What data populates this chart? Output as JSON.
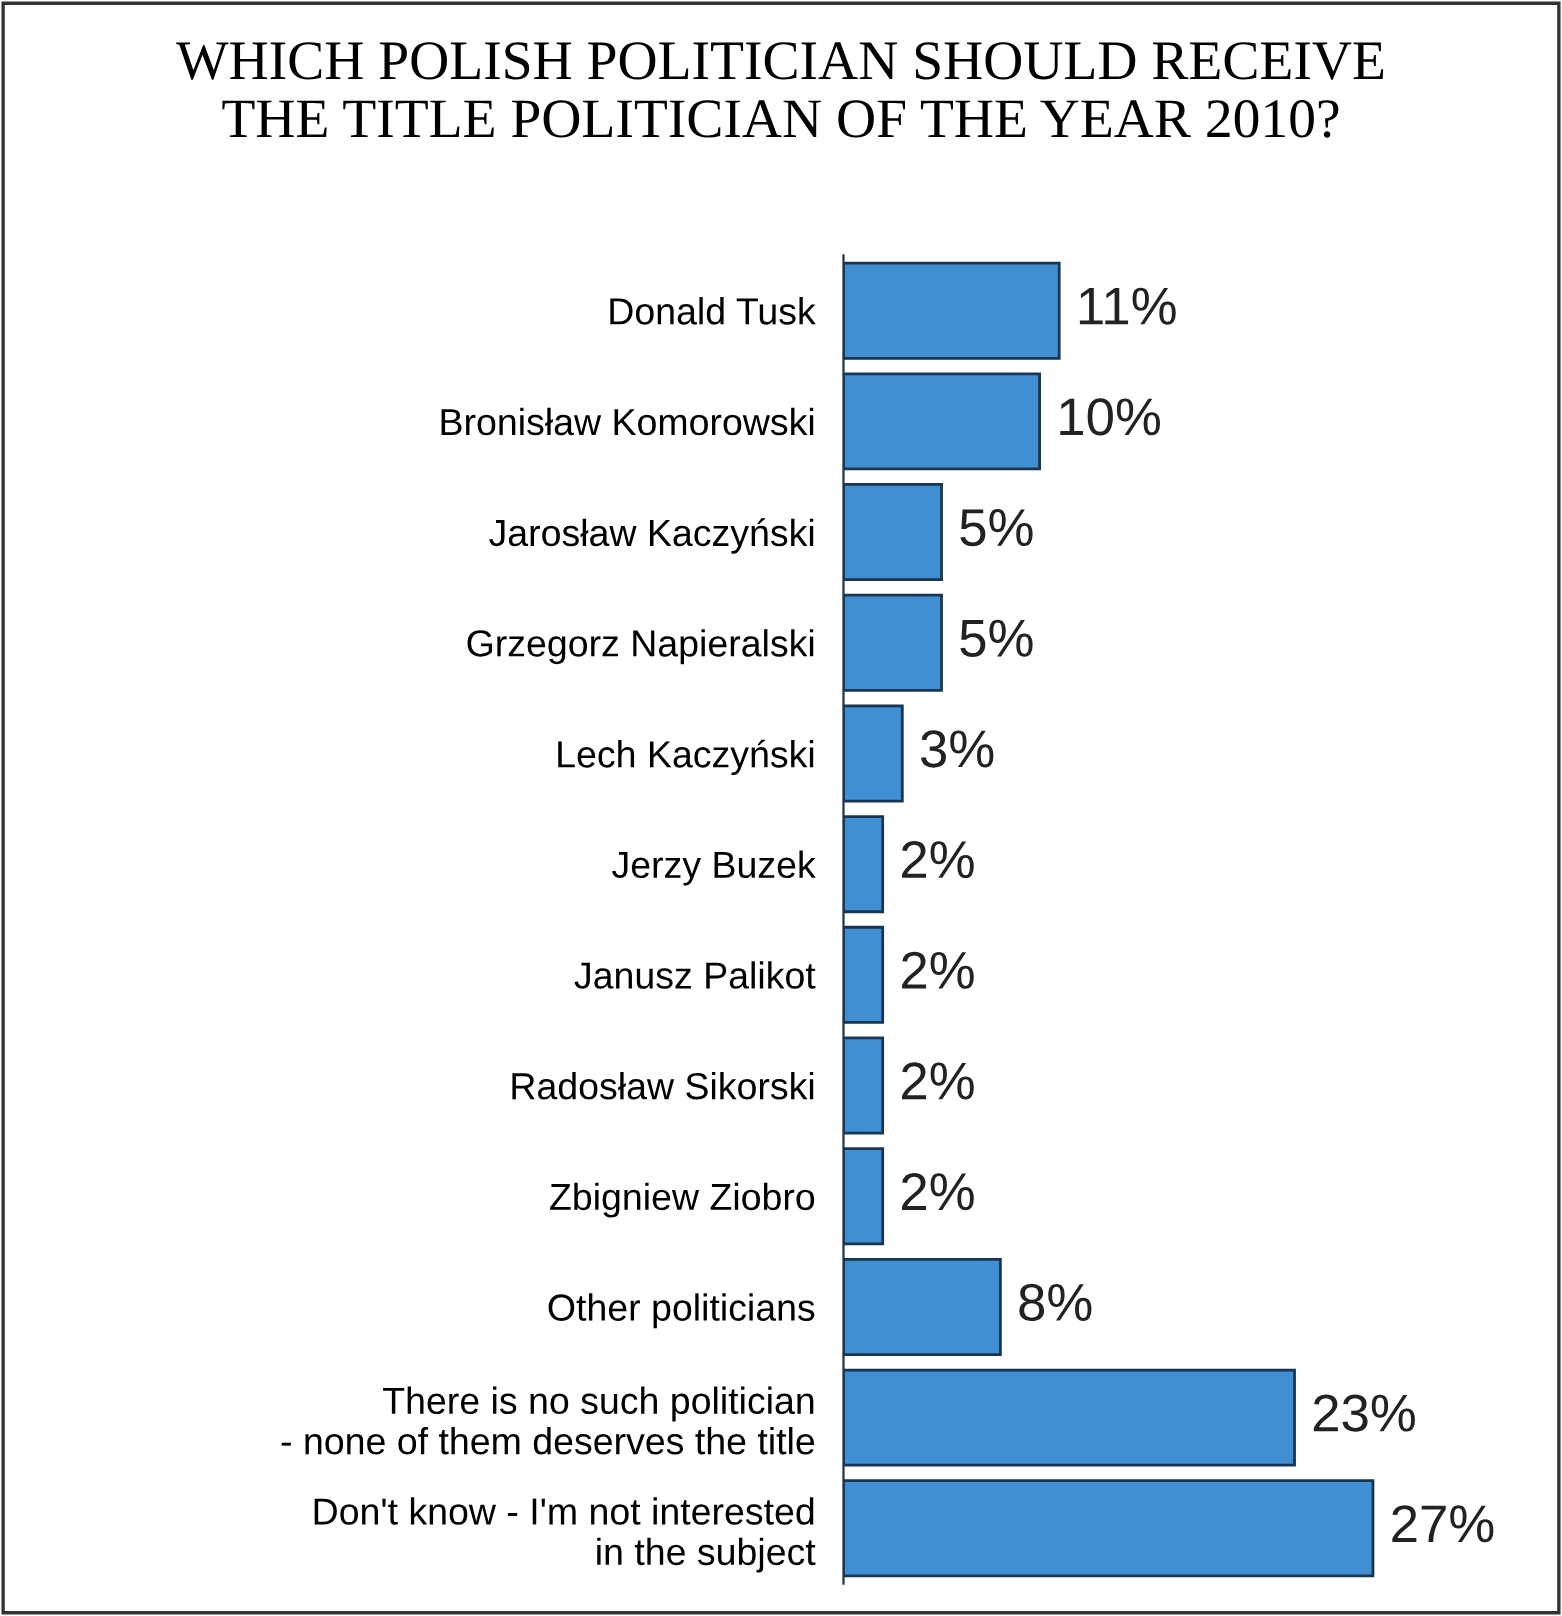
{
  "chart_data": {
    "type": "bar",
    "orientation": "horizontal",
    "title": "WHICH POLISH POLITICIAN SHOULD RECEIVE\nTHE TITLE POLITICIAN OF THE YEAR 2010?",
    "categories": [
      "Donald Tusk",
      "Bronisław Komorowski",
      "Jarosław Kaczyński",
      "Grzegorz Napieralski",
      "Lech Kaczyński",
      "Jerzy Buzek",
      "Janusz Palikot",
      "Radosław Sikorski",
      "Zbigniew Ziobro",
      "Other politicians",
      "There is no such politician\n- none of them deserves the title",
      "Don't know - I'm not interested\nin the subject"
    ],
    "values": [
      11,
      10,
      5,
      5,
      3,
      2,
      2,
      2,
      2,
      8,
      23,
      27
    ],
    "value_labels": [
      "11%",
      "10%",
      "5%",
      "5%",
      "3%",
      "2%",
      "2%",
      "2%",
      "2%",
      "8%",
      "23%",
      "27%"
    ],
    "color": "#3f8fd2",
    "grid": false,
    "legend": false
  }
}
